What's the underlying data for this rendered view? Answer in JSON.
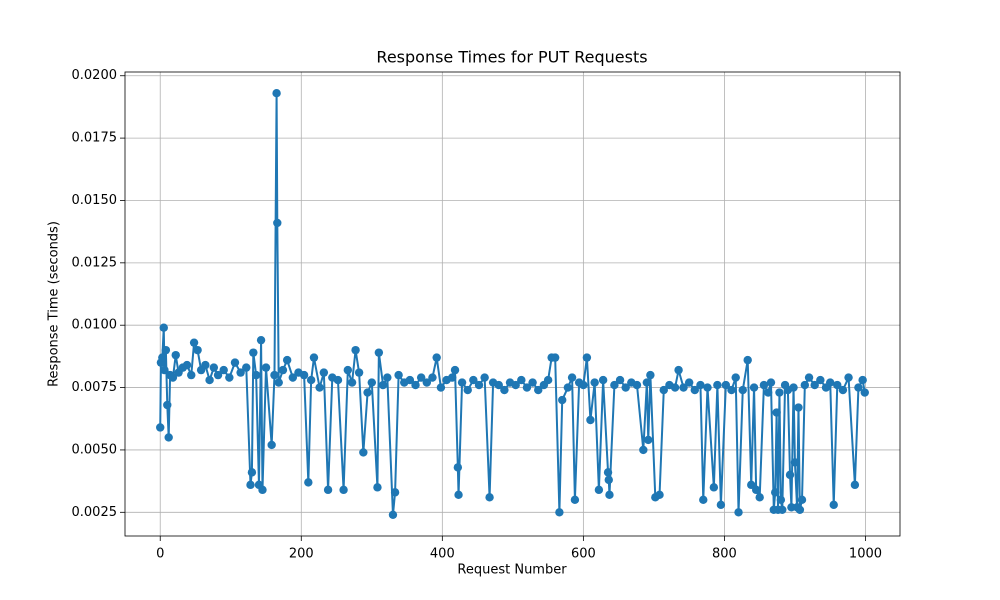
{
  "chart_data": {
    "type": "line",
    "title": "Response Times for PUT Requests",
    "x_label": "Request Number",
    "y_label": "Response Time (seconds)",
    "color": "#1f77b4",
    "grid": true,
    "xlim": [
      -49.95,
      1048.95
    ],
    "xticks": [
      0,
      200,
      400,
      600,
      800,
      1000
    ],
    "ylim": [
      0.00155,
      0.02015
    ],
    "yticks": [
      0.0025,
      {
        "value": 0.005,
        "label": "0.0050"
      },
      0.0075,
      {
        "value": 0.01,
        "label": "0.0100"
      },
      0.0125,
      {
        "value": 0.015,
        "label": "0.0150"
      },
      0.0175,
      {
        "value": 0.02,
        "label": "0.0200"
      }
    ],
    "x": [
      0,
      1,
      3,
      5,
      6,
      8,
      10,
      12,
      14,
      18,
      22,
      26,
      32,
      38,
      44,
      48,
      53,
      58,
      64,
      70,
      76,
      82,
      90,
      98,
      106,
      114,
      122,
      128,
      130,
      132,
      136,
      140,
      143,
      145,
      150,
      158,
      162,
      165,
      166,
      168,
      174,
      180,
      188,
      196,
      204,
      210,
      214,
      218,
      226,
      232,
      238,
      244,
      252,
      260,
      266,
      272,
      277,
      282,
      288,
      294,
      300,
      308,
      310,
      316,
      322,
      330,
      333,
      338,
      346,
      354,
      362,
      370,
      378,
      386,
      392,
      398,
      406,
      414,
      418,
      422,
      423,
      428,
      436,
      444,
      452,
      460,
      467,
      472,
      480,
      488,
      496,
      504,
      512,
      520,
      528,
      536,
      544,
      550,
      555,
      560,
      566,
      570,
      578,
      584,
      588,
      594,
      600,
      605,
      610,
      616,
      622,
      628,
      635,
      636,
      637,
      644,
      652,
      660,
      668,
      676,
      685,
      690,
      692,
      695,
      702,
      708,
      714,
      722,
      730,
      735,
      742,
      750,
      758,
      766,
      770,
      776,
      785,
      790,
      795,
      802,
      810,
      816,
      820,
      826,
      833,
      838,
      842,
      845,
      850,
      856,
      862,
      866,
      870,
      872,
      874,
      876,
      878,
      880,
      882,
      886,
      890,
      893,
      895,
      898,
      900,
      903,
      905,
      907,
      910,
      914,
      920,
      928,
      936,
      944,
      950,
      955,
      960,
      968,
      976,
      985,
      990,
      996,
      999
    ],
    "values": [
      0.0059,
      0.0085,
      0.0087,
      0.0099,
      0.0082,
      0.009,
      0.0068,
      0.0055,
      0.008,
      0.0079,
      0.0088,
      0.0081,
      0.0083,
      0.0084,
      0.008,
      0.0093,
      0.009,
      0.0082,
      0.0084,
      0.0078,
      0.0083,
      0.008,
      0.0082,
      0.0079,
      0.0085,
      0.0081,
      0.0083,
      0.0036,
      0.0041,
      0.0089,
      0.008,
      0.0036,
      0.0094,
      0.0034,
      0.0083,
      0.0052,
      0.008,
      0.0193,
      0.0141,
      0.0077,
      0.0082,
      0.0086,
      0.0079,
      0.0081,
      0.008,
      0.0037,
      0.0078,
      0.0087,
      0.0075,
      0.0081,
      0.0034,
      0.0079,
      0.0078,
      0.0034,
      0.0082,
      0.0077,
      0.009,
      0.0081,
      0.0049,
      0.0073,
      0.0077,
      0.0035,
      0.0089,
      0.0076,
      0.0079,
      0.0024,
      0.0033,
      0.008,
      0.0077,
      0.0078,
      0.0076,
      0.0079,
      0.0077,
      0.0079,
      0.0087,
      0.0075,
      0.0078,
      0.0079,
      0.0082,
      0.0043,
      0.0032,
      0.0077,
      0.0074,
      0.0078,
      0.0076,
      0.0079,
      0.0031,
      0.0077,
      0.0076,
      0.0074,
      0.0077,
      0.0076,
      0.0078,
      0.0075,
      0.0077,
      0.0074,
      0.0076,
      0.0078,
      0.0087,
      0.0087,
      0.0025,
      0.007,
      0.0075,
      0.0079,
      0.003,
      0.0077,
      0.0076,
      0.0087,
      0.0062,
      0.0077,
      0.0034,
      0.0078,
      0.0041,
      0.0038,
      0.0032,
      0.0076,
      0.0078,
      0.0075,
      0.0077,
      0.0076,
      0.005,
      0.0077,
      0.0054,
      0.008,
      0.0031,
      0.0032,
      0.0074,
      0.0076,
      0.0075,
      0.0082,
      0.0075,
      0.0077,
      0.0074,
      0.0076,
      0.003,
      0.0075,
      0.0035,
      0.0076,
      0.0028,
      0.0076,
      0.0074,
      0.0079,
      0.0025,
      0.0074,
      0.0086,
      0.0036,
      0.0075,
      0.0034,
      0.0031,
      0.0076,
      0.0073,
      0.0077,
      0.0026,
      0.0033,
      0.0065,
      0.0026,
      0.0073,
      0.003,
      0.0026,
      0.0076,
      0.0074,
      0.004,
      0.0027,
      0.0075,
      0.0045,
      0.0027,
      0.0067,
      0.0026,
      0.003,
      0.0076,
      0.0079,
      0.0076,
      0.0078,
      0.0075,
      0.0077,
      0.0028,
      0.0076,
      0.0074,
      0.0079,
      0.0036,
      0.0075,
      0.0078,
      0.0073
    ]
  }
}
